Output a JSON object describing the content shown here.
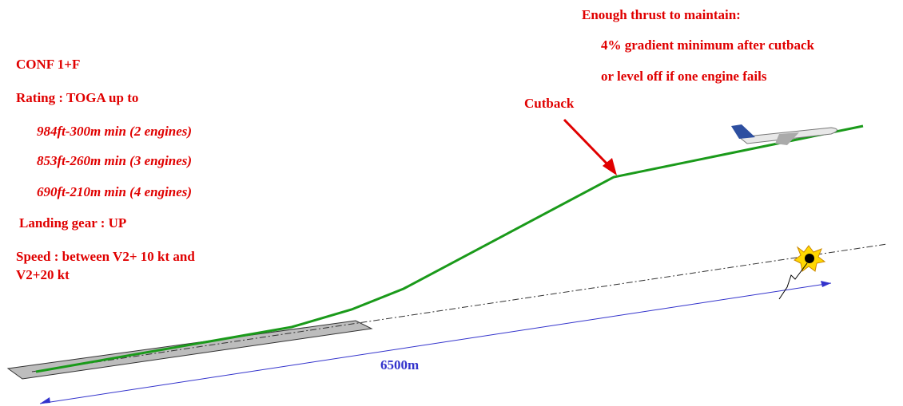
{
  "labels": {
    "conf": "CONF 1+F",
    "rating": "Rating : TOGA up to",
    "min2": "984ft-300m min (2 engines)",
    "min3": "853ft-260m min (3 engines)",
    "min4": "690ft-210m min (4 engines)",
    "gear": "Landing gear : UP",
    "speed1": "Speed : between V2+ 10 kt and",
    "speed2": "V2+20 kt",
    "cutback": "Cutback",
    "thrust1": "Enough thrust to maintain:",
    "thrust2": "4% gradient minimum after cutback",
    "thrust3": "or level off if one engine fails",
    "distance": "6500m"
  }
}
